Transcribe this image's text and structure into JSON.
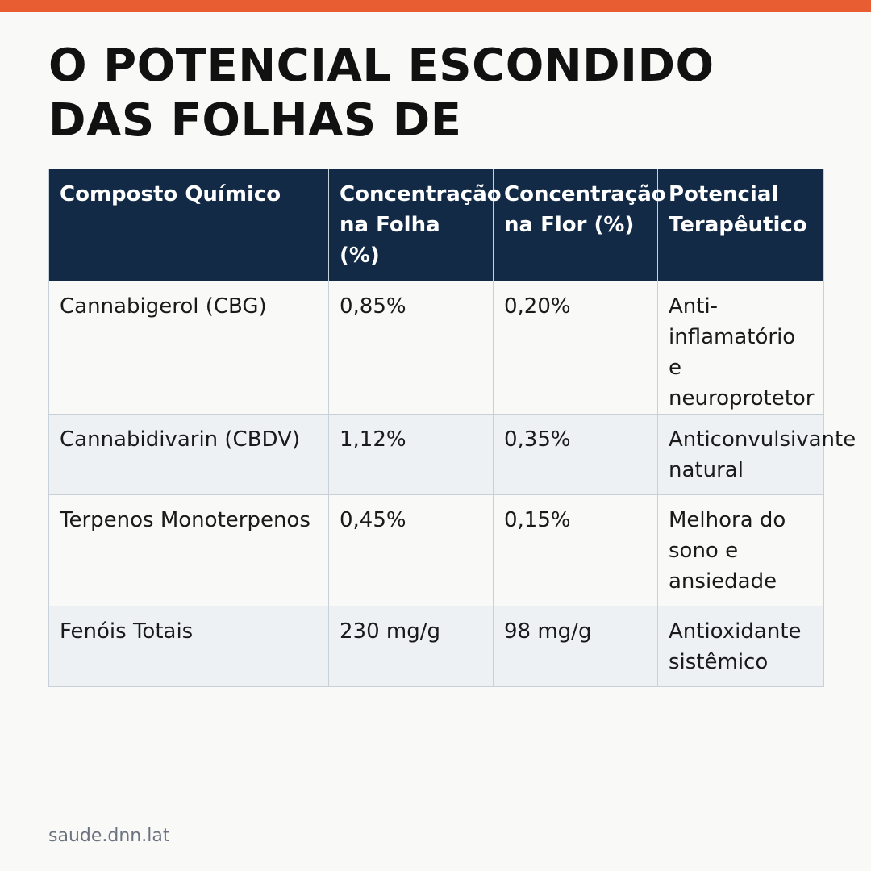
{
  "brand": {
    "accent_color": "#e85d31",
    "header_color": "#122a45"
  },
  "title": "O POTENCIAL ESCONDIDO DAS FOLHAS DE",
  "table": {
    "headers": [
      "Composto Químico",
      "Concentração na Folha (%)",
      "Concentração na Flor (%)",
      "Potencial Terapêutico"
    ],
    "rows": [
      [
        "Cannabigerol (CBG)",
        "0,85%",
        "0,20%",
        "Anti-inflamatório e neuroprotetor"
      ],
      [
        "Cannabidivarin (CBDV)",
        "1,12%",
        "0,35%",
        "Anticonvulsivante natural"
      ],
      [
        "Terpenos Monoterpenos",
        "0,45%",
        "0,15%",
        "Melhora do sono e ansiedade"
      ],
      [
        "Fenóis Totais",
        "230 mg/g",
        "98 mg/g",
        "Antioxidante sistêmico"
      ]
    ]
  },
  "footer": "saude.dnn.lat"
}
